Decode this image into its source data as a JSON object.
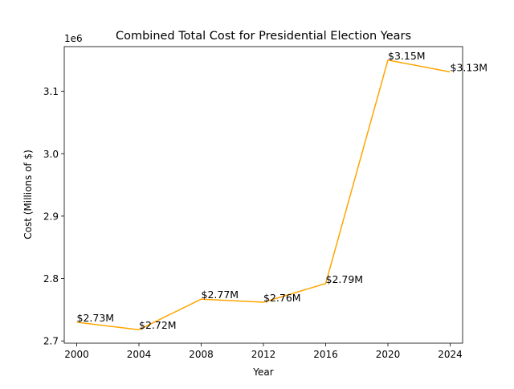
{
  "chart_data": {
    "type": "line",
    "title": "Combined Total Cost for Presidential Election Years",
    "xlabel": "Year",
    "ylabel": "Cost (Millions of $)",
    "offset_label": "1e6",
    "x": [
      2000,
      2004,
      2008,
      2012,
      2016,
      2020,
      2024
    ],
    "series": [
      {
        "values": [
          2730000,
          2718000,
          2767000,
          2762000,
          2792000,
          3150000,
          3131000
        ],
        "color": "#ffa500"
      }
    ],
    "data_labels": [
      "$2.73M",
      "$2.72M",
      "$2.77M",
      "$2.76M",
      "$2.79M",
      "$3.15M",
      "$3.13M"
    ],
    "x_ticks": [
      2000,
      2004,
      2008,
      2012,
      2016,
      2020,
      2024
    ],
    "x_tick_labels": [
      "2000",
      "2004",
      "2008",
      "2012",
      "2016",
      "2020",
      "2024"
    ],
    "y_ticks": [
      2700000,
      2800000,
      2900000,
      3000000,
      3100000
    ],
    "y_tick_labels": [
      "2.7",
      "2.8",
      "2.9",
      "3.0",
      "3.1"
    ],
    "xlim": [
      1999.2,
      2024.8
    ],
    "ylim": [
      2696400,
      3171600
    ],
    "grid": false,
    "legend": "none"
  }
}
